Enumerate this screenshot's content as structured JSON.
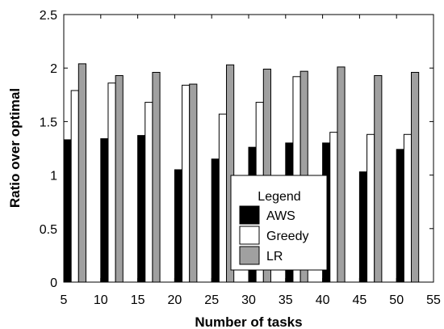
{
  "chart_data": {
    "type": "bar",
    "title": "",
    "xlabel": "Number of tasks",
    "ylabel": "Ratio over optimal",
    "xlim": [
      5,
      55
    ],
    "ylim": [
      0,
      2.5
    ],
    "x_ticks": [
      "5",
      "10",
      "15",
      "20",
      "25",
      "30",
      "35",
      "40",
      "45",
      "50",
      "55"
    ],
    "y_ticks": [
      "0",
      "0.5",
      "1",
      "1.5",
      "2",
      "2.5"
    ],
    "categories": [
      5,
      10,
      15,
      20,
      25,
      30,
      35,
      40,
      45,
      50
    ],
    "grid": false,
    "legend": {
      "title": "Legend",
      "placement": "center-right"
    },
    "series": [
      {
        "name": "AWS",
        "color": "#000000",
        "values": [
          1.33,
          1.34,
          1.37,
          1.05,
          1.15,
          1.26,
          1.3,
          1.3,
          1.03,
          1.24
        ]
      },
      {
        "name": "Greedy",
        "color": "#ffffff",
        "values": [
          1.79,
          1.86,
          1.68,
          1.84,
          1.57,
          1.68,
          1.92,
          1.4,
          1.38,
          1.38
        ]
      },
      {
        "name": "LR",
        "color": "#a0a0a0",
        "values": [
          2.04,
          1.93,
          1.96,
          1.85,
          2.03,
          1.99,
          1.97,
          2.01,
          1.93,
          1.96
        ]
      }
    ]
  }
}
